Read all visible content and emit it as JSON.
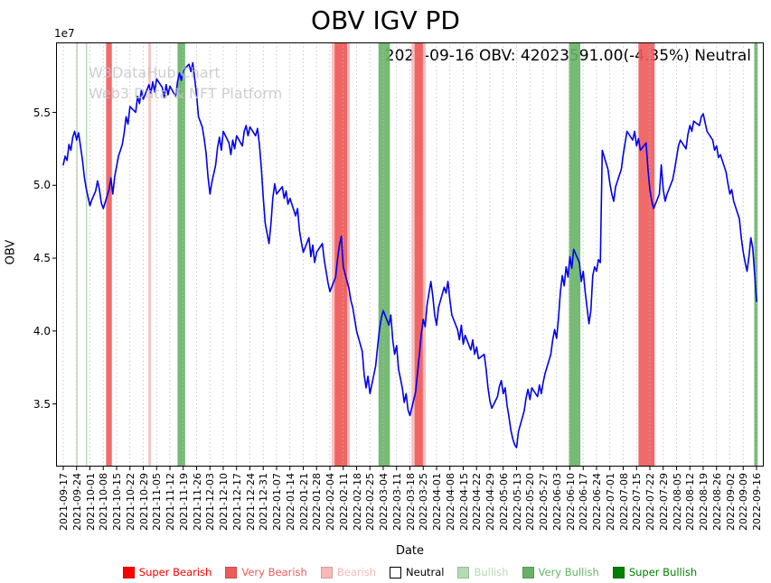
{
  "title": "OBV IGV PD",
  "annotation": "2022-09-16 OBV: 42023591.00(-4.35%) Neutral",
  "watermark": {
    "line1": "W3DataHub Chart",
    "line2": "Web3 Data & NFT Platform"
  },
  "legend": [
    {
      "label": "Super Bearish",
      "key": "super_bearish"
    },
    {
      "label": "Very Bearish",
      "key": "very_bearish"
    },
    {
      "label": "Bearish",
      "key": "bearish"
    },
    {
      "label": "Neutral",
      "key": "neutral"
    },
    {
      "label": "Bullish",
      "key": "bullish"
    },
    {
      "label": "Very Bullish",
      "key": "very_bullish"
    },
    {
      "label": "Super Bullish",
      "key": "super_bullish"
    }
  ],
  "chart_data": {
    "type": "line",
    "title": "OBV IGV PD",
    "xlabel": "Date",
    "ylabel": "OBV",
    "y_offset_text": "1e7",
    "y_unit": 10000000,
    "ylim": [
      3.07,
      5.98
    ],
    "yticks": [
      3.5,
      4.0,
      4.5,
      5.0,
      5.5
    ],
    "x_start": "2021-09-17",
    "x_end": "2022-09-16",
    "total_days": 364,
    "tick_interval_days": 7,
    "grid": "vertical-dotted",
    "legend_position": "bottom-center",
    "line_color": "#0000ee",
    "levels": {
      "super_bearish": "#ff0000",
      "very_bearish": "#ef5a5a",
      "bearish": "#f9b8b8",
      "neutral": "#ffffff",
      "bullish": "#b4dcb4",
      "very_bullish": "#67b267",
      "super_bullish": "#008000"
    },
    "x_tick_labels": [
      "2021-09-17",
      "2021-09-24",
      "2021-10-01",
      "2021-10-08",
      "2021-10-15",
      "2021-10-22",
      "2021-10-29",
      "2021-11-05",
      "2021-11-12",
      "2021-11-19",
      "2021-11-26",
      "2021-12-03",
      "2021-12-10",
      "2021-12-17",
      "2021-12-24",
      "2021-12-31",
      "2022-01-07",
      "2022-01-14",
      "2022-01-21",
      "2022-01-28",
      "2022-02-04",
      "2022-02-11",
      "2022-02-18",
      "2022-02-25",
      "2022-03-04",
      "2022-03-11",
      "2022-03-18",
      "2022-03-25",
      "2022-04-01",
      "2022-04-08",
      "2022-04-15",
      "2022-04-22",
      "2022-04-29",
      "2022-05-06",
      "2022-05-13",
      "2022-05-20",
      "2022-05-27",
      "2022-06-03",
      "2022-06-10",
      "2022-06-17",
      "2022-06-24",
      "2022-07-01",
      "2022-07-08",
      "2022-07-15",
      "2022-07-22",
      "2022-07-29",
      "2022-08-05",
      "2022-08-12",
      "2022-08-19",
      "2022-08-26",
      "2022-09-02",
      "2022-09-09",
      "2022-09-16"
    ],
    "signal_bands": [
      {
        "start_day": 6.8,
        "end_day": 7.6,
        "level": "bullish"
      },
      {
        "start_day": 11.8,
        "end_day": 12.6,
        "level": "bullish"
      },
      {
        "start_day": 22.5,
        "end_day": 25.5,
        "level": "very_bearish"
      },
      {
        "start_day": 44.7,
        "end_day": 46.0,
        "level": "bearish"
      },
      {
        "start_day": 60.0,
        "end_day": 64.0,
        "level": "very_bullish"
      },
      {
        "start_day": 141.0,
        "end_day": 150.5,
        "level": "bearish"
      },
      {
        "start_day": 142.5,
        "end_day": 149.0,
        "level": "very_bearish"
      },
      {
        "start_day": 165.5,
        "end_day": 171.5,
        "level": "very_bullish"
      },
      {
        "start_day": 182.8,
        "end_day": 190.3,
        "level": "bearish"
      },
      {
        "start_day": 184.5,
        "end_day": 188.8,
        "level": "very_bearish"
      },
      {
        "start_day": 265.5,
        "end_day": 271.5,
        "level": "very_bullish"
      },
      {
        "start_day": 302.0,
        "end_day": 310.5,
        "level": "very_bearish"
      },
      {
        "start_day": 362.8,
        "end_day": 364.6,
        "level": "very_bullish"
      }
    ],
    "series": [
      {
        "name": "OBV",
        "days": [
          0,
          1,
          2,
          3,
          4,
          5,
          6,
          7,
          8,
          10,
          11,
          12,
          13,
          14,
          15,
          17,
          18,
          19,
          20,
          21,
          24,
          25,
          26,
          27,
          28,
          29,
          31,
          32,
          33,
          34,
          35,
          38,
          39,
          40,
          41,
          42,
          45,
          46,
          47,
          48,
          49,
          52,
          53,
          54,
          55,
          56,
          59,
          60,
          61,
          62,
          63,
          66,
          67,
          68,
          69,
          70,
          71,
          73,
          74,
          75,
          76,
          77,
          78,
          80,
          81,
          82,
          83,
          84,
          87,
          88,
          89,
          90,
          91,
          94,
          95,
          96,
          97,
          98,
          101,
          102,
          103,
          104,
          105,
          106,
          108,
          109,
          110,
          111,
          112,
          115,
          116,
          117,
          118,
          119,
          122,
          123,
          124,
          125,
          126,
          129,
          130,
          131,
          132,
          133,
          136,
          137,
          138,
          139,
          140,
          143,
          144,
          145,
          146,
          147,
          150,
          151,
          152,
          153,
          154,
          157,
          158,
          159,
          160,
          161,
          164,
          165,
          166,
          167,
          168,
          171,
          172,
          173,
          174,
          175,
          176,
          178,
          179,
          180,
          181,
          182,
          185,
          186,
          187,
          188,
          189,
          190,
          191,
          192,
          193,
          194,
          195,
          196,
          197,
          200,
          201,
          202,
          203,
          204,
          207,
          208,
          209,
          210,
          211,
          214,
          215,
          216,
          217,
          218,
          221,
          222,
          223,
          224,
          225,
          228,
          229,
          230,
          231,
          232,
          233,
          234,
          235,
          236,
          237,
          238,
          239,
          242,
          243,
          244,
          245,
          246,
          249,
          250,
          251,
          252,
          253,
          256,
          257,
          258,
          259,
          260,
          261,
          262,
          263,
          264,
          265,
          266,
          267,
          268,
          271,
          272,
          273,
          274,
          275,
          276,
          277,
          278,
          279,
          280,
          281,
          282,
          283,
          286,
          287,
          288,
          289,
          290,
          293,
          294,
          295,
          296,
          299,
          300,
          301,
          302,
          303,
          306,
          307,
          308,
          309,
          310,
          313,
          314,
          315,
          316,
          317,
          320,
          321,
          322,
          323,
          324,
          327,
          328,
          329,
          330,
          331,
          334,
          335,
          336,
          337,
          338,
          341,
          342,
          343,
          344,
          345,
          348,
          349,
          350,
          351,
          352,
          355,
          356,
          357,
          358,
          359,
          360,
          361,
          362,
          363,
          364
        ],
        "values": [
          5.14,
          5.2,
          5.17,
          5.28,
          5.24,
          5.33,
          5.37,
          5.31,
          5.36,
          5.18,
          5.06,
          4.98,
          4.92,
          4.86,
          4.9,
          4.96,
          5.03,
          4.97,
          4.88,
          4.84,
          4.97,
          5.05,
          4.94,
          5.06,
          5.13,
          5.2,
          5.28,
          5.36,
          5.47,
          5.42,
          5.54,
          5.5,
          5.61,
          5.56,
          5.65,
          5.59,
          5.69,
          5.63,
          5.71,
          5.64,
          5.73,
          5.67,
          5.6,
          5.69,
          5.62,
          5.68,
          5.61,
          5.71,
          5.77,
          5.72,
          5.79,
          5.83,
          5.78,
          5.84,
          5.73,
          5.62,
          5.47,
          5.4,
          5.32,
          5.22,
          5.06,
          4.94,
          5.02,
          5.14,
          5.26,
          5.33,
          5.24,
          5.37,
          5.29,
          5.21,
          5.31,
          5.25,
          5.34,
          5.27,
          5.37,
          5.41,
          5.34,
          5.4,
          5.34,
          5.39,
          5.28,
          5.12,
          4.92,
          4.74,
          4.6,
          4.73,
          4.91,
          5.01,
          4.94,
          4.99,
          4.91,
          4.96,
          4.87,
          4.91,
          4.79,
          4.84,
          4.69,
          4.61,
          4.54,
          4.64,
          4.51,
          4.59,
          4.47,
          4.54,
          4.6,
          4.49,
          4.41,
          4.33,
          4.27,
          4.37,
          4.49,
          4.59,
          4.65,
          4.44,
          4.29,
          4.21,
          4.16,
          4.08,
          4.0,
          3.86,
          3.7,
          3.61,
          3.69,
          3.57,
          3.76,
          3.89,
          4.01,
          4.09,
          4.14,
          4.04,
          4.11,
          3.94,
          3.84,
          3.9,
          3.74,
          3.61,
          3.51,
          3.57,
          3.46,
          3.42,
          3.58,
          3.71,
          3.84,
          3.98,
          4.08,
          4.03,
          4.18,
          4.26,
          4.34,
          4.24,
          4.11,
          4.04,
          4.16,
          4.3,
          4.26,
          4.34,
          4.21,
          4.11,
          4.01,
          3.94,
          4.04,
          3.91,
          3.97,
          3.87,
          3.94,
          3.84,
          3.89,
          3.81,
          3.84,
          3.74,
          3.61,
          3.52,
          3.47,
          3.55,
          3.62,
          3.66,
          3.57,
          3.61,
          3.49,
          3.41,
          3.32,
          3.26,
          3.22,
          3.2,
          3.31,
          3.45,
          3.54,
          3.6,
          3.53,
          3.61,
          3.55,
          3.63,
          3.57,
          3.65,
          3.71,
          3.84,
          3.94,
          4.01,
          3.95,
          4.09,
          4.27,
          4.38,
          4.31,
          4.44,
          4.37,
          4.51,
          4.43,
          4.56,
          4.47,
          4.34,
          4.41,
          4.27,
          4.16,
          4.05,
          4.14,
          4.38,
          4.44,
          4.41,
          4.49,
          4.47,
          5.24,
          5.11,
          5.01,
          4.94,
          4.89,
          4.99,
          5.11,
          5.21,
          5.29,
          5.37,
          5.31,
          5.37,
          5.27,
          5.32,
          5.24,
          5.29,
          5.11,
          4.97,
          4.89,
          4.84,
          4.94,
          5.14,
          4.97,
          4.89,
          4.94,
          5.04,
          5.11,
          5.19,
          5.27,
          5.31,
          5.25,
          5.35,
          5.41,
          5.37,
          5.44,
          5.41,
          5.47,
          5.49,
          5.43,
          5.37,
          5.31,
          5.24,
          5.27,
          5.19,
          5.21,
          5.09,
          5.01,
          4.94,
          4.97,
          4.89,
          4.77,
          4.64,
          4.54,
          4.47,
          4.41,
          4.51,
          4.64,
          4.57,
          4.39,
          4.2023591
        ]
      }
    ]
  }
}
